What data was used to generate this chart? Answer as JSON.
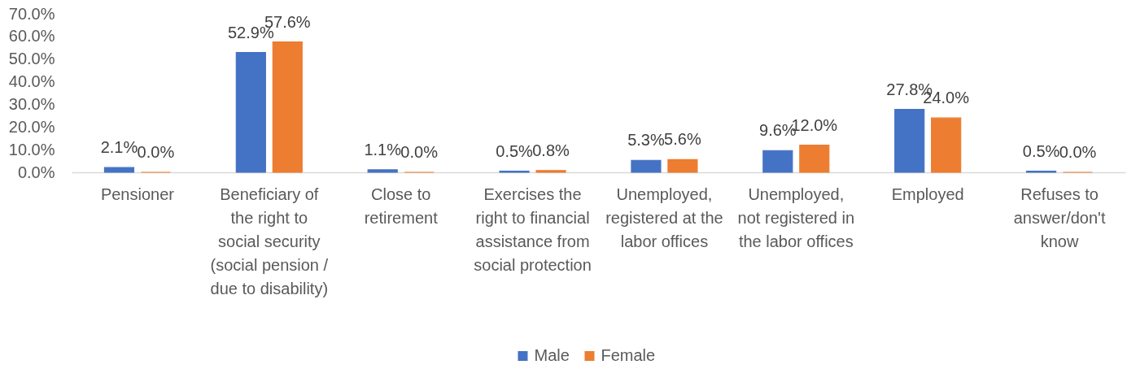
{
  "chart_data": {
    "type": "bar",
    "categories": [
      "Pensioner",
      "Beneficiary of the right to social security (social pension / due to disability)",
      "Close to retirement",
      "Exercises the right to financial assistance from social protection",
      "Unemployed, registered at the labor offices",
      "Unemployed, not registered in the labor offices",
      "Employed",
      "Refuses to answer/don't know"
    ],
    "series": [
      {
        "name": "Male",
        "color": "#4472c4",
        "values": [
          2.1,
          52.9,
          1.1,
          0.5,
          5.3,
          9.6,
          27.8,
          0.5
        ],
        "value_labels": [
          "2.1%",
          "52.9%",
          "1.1%",
          "0.5%",
          "5.3%",
          "9.6%",
          "27.8%",
          "0.5%"
        ]
      },
      {
        "name": "Female",
        "color": "#ed7d31",
        "values": [
          0.0,
          57.6,
          0.0,
          0.8,
          5.6,
          12.0,
          24.0,
          0.0
        ],
        "value_labels": [
          "0.0%",
          "57.6%",
          "0.0%",
          "0.8%",
          "5.6%",
          "12.0%",
          "24.0%",
          "0.0%"
        ]
      }
    ],
    "ylim": [
      0,
      70
    ],
    "yticks": [
      {
        "value": 0,
        "label": "0.0%"
      },
      {
        "value": 10,
        "label": "10.0%"
      },
      {
        "value": 20,
        "label": "20.0%"
      },
      {
        "value": 30,
        "label": "30.0%"
      },
      {
        "value": 40,
        "label": "40.0%"
      },
      {
        "value": 50,
        "label": "50.0%"
      },
      {
        "value": 60,
        "label": "60.0%"
      },
      {
        "value": 70,
        "label": "70.0%"
      }
    ],
    "legend": "bottom"
  }
}
